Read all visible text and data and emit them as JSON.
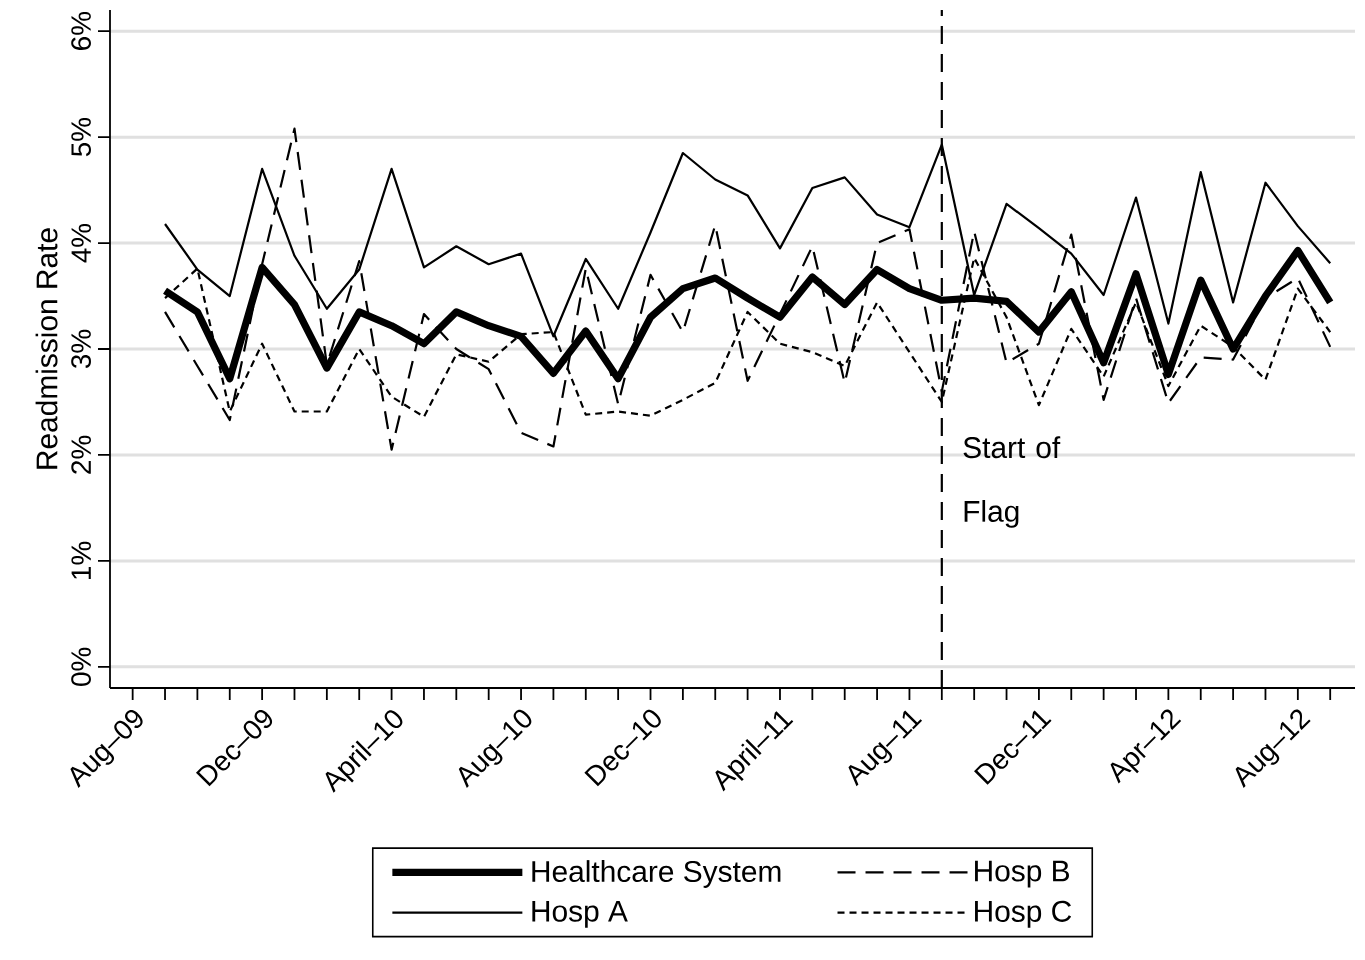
{
  "chart_data": {
    "type": "line",
    "ylabel": "Readmission Rate",
    "x": [
      "2009-09",
      "2009-10",
      "2009-11",
      "2009-12",
      "2010-01",
      "2010-02",
      "2010-03",
      "2010-04",
      "2010-05",
      "2010-06",
      "2010-07",
      "2010-08",
      "2010-09",
      "2010-10",
      "2010-11",
      "2010-12",
      "2011-01",
      "2011-02",
      "2011-03",
      "2011-04",
      "2011-05",
      "2011-06",
      "2011-07",
      "2011-08",
      "2011-09",
      "2011-10",
      "2011-11",
      "2011-12",
      "2012-01",
      "2012-02",
      "2012-03",
      "2012-04",
      "2012-05",
      "2012-06",
      "2012-07",
      "2012-08",
      "2012-09"
    ],
    "series": [
      {
        "name": "Healthcare System",
        "color": "#000000",
        "line_style": "solid",
        "values": [
          3.55,
          3.35,
          2.72,
          3.77,
          3.42,
          2.82,
          3.35,
          3.22,
          3.05,
          3.35,
          3.22,
          3.12,
          2.77,
          3.17,
          2.72,
          3.3,
          3.57,
          3.67,
          3.48,
          3.3,
          3.68,
          3.42,
          3.75,
          3.57,
          3.46,
          3.48,
          3.45,
          3.16,
          3.54,
          2.87,
          3.71,
          2.76,
          3.65,
          3.0,
          3.5,
          3.93,
          3.44
        ]
      },
      {
        "name": "Hosp A",
        "color": "#000000",
        "line_style": "solid",
        "values": [
          4.18,
          3.75,
          3.5,
          4.7,
          3.88,
          3.38,
          3.75,
          4.7,
          3.77,
          3.97,
          3.8,
          3.9,
          3.12,
          3.85,
          3.38,
          4.1,
          4.85,
          4.6,
          4.45,
          3.95,
          4.52,
          4.62,
          4.27,
          4.15,
          4.93,
          3.51,
          4.37,
          4.14,
          3.9,
          3.51,
          4.43,
          3.24,
          4.67,
          3.44,
          4.57,
          4.16,
          3.81
        ]
      },
      {
        "name": "Hosp B",
        "color": "#000000",
        "line_style": "dashed",
        "values": [
          3.35,
          2.84,
          2.33,
          3.8,
          5.08,
          2.85,
          3.83,
          2.05,
          3.33,
          3.0,
          2.81,
          2.21,
          2.08,
          3.76,
          2.48,
          3.7,
          3.16,
          4.17,
          2.7,
          3.33,
          3.97,
          2.68,
          4.0,
          4.13,
          2.6,
          4.11,
          2.87,
          3.05,
          4.08,
          2.52,
          3.48,
          2.49,
          2.92,
          2.9,
          3.48,
          3.67,
          3.02
        ]
      },
      {
        "name": "Hosp C",
        "color": "#000000",
        "line_style": "dotted",
        "values": [
          3.48,
          3.76,
          2.41,
          3.05,
          2.41,
          2.41,
          3.0,
          2.55,
          2.36,
          2.95,
          2.88,
          3.14,
          3.16,
          2.38,
          2.41,
          2.37,
          2.52,
          2.68,
          3.35,
          3.05,
          2.97,
          2.84,
          3.44,
          2.97,
          2.5,
          3.86,
          3.3,
          2.47,
          3.19,
          2.74,
          3.44,
          2.65,
          3.22,
          3.02,
          2.71,
          3.57,
          3.16
        ]
      }
    ],
    "xlim": [
      "2009-07-10",
      "2012-09-24"
    ],
    "xticks": [
      {
        "value": "2009-08",
        "label": "Aug–09"
      },
      {
        "value": "2009-09",
        "label": null
      },
      {
        "value": "2009-10",
        "label": null
      },
      {
        "value": "2009-11",
        "label": null
      },
      {
        "value": "2009-12",
        "label": "Dec–09"
      },
      {
        "value": "2010-01",
        "label": null
      },
      {
        "value": "2010-02",
        "label": null
      },
      {
        "value": "2010-03",
        "label": null
      },
      {
        "value": "2010-04",
        "label": "April–10"
      },
      {
        "value": "2010-05",
        "label": null
      },
      {
        "value": "2010-06",
        "label": null
      },
      {
        "value": "2010-07",
        "label": null
      },
      {
        "value": "2010-08",
        "label": "Aug–10"
      },
      {
        "value": "2010-09",
        "label": null
      },
      {
        "value": "2010-10",
        "label": null
      },
      {
        "value": "2010-11",
        "label": null
      },
      {
        "value": "2010-12",
        "label": "Dec–10"
      },
      {
        "value": "2011-01",
        "label": null
      },
      {
        "value": "2011-02",
        "label": null
      },
      {
        "value": "2011-03",
        "label": null
      },
      {
        "value": "2011-04",
        "label": "April–11"
      },
      {
        "value": "2011-05",
        "label": null
      },
      {
        "value": "2011-06",
        "label": null
      },
      {
        "value": "2011-07",
        "label": null
      },
      {
        "value": "2011-08",
        "label": "Aug–11"
      },
      {
        "value": "2011-09",
        "label": null
      },
      {
        "value": "2011-10",
        "label": null
      },
      {
        "value": "2011-11",
        "label": null
      },
      {
        "value": "2011-12",
        "label": "Dec–11"
      },
      {
        "value": "2012-01",
        "label": null
      },
      {
        "value": "2012-02",
        "label": null
      },
      {
        "value": "2012-03",
        "label": null
      },
      {
        "value": "2012-04",
        "label": "Apr–12"
      },
      {
        "value": "2012-05",
        "label": null
      },
      {
        "value": "2012-06",
        "label": null
      },
      {
        "value": "2012-07",
        "label": null
      },
      {
        "value": "2012-08",
        "label": "Aug–12"
      },
      {
        "value": "2012-09",
        "label": null
      }
    ],
    "ylim": [
      -0.2,
      6.2
    ],
    "yticks": [
      {
        "value": 0,
        "label": "0%"
      },
      {
        "value": 1,
        "label": "1%"
      },
      {
        "value": 2,
        "label": "2%"
      },
      {
        "value": 3,
        "label": "3%"
      },
      {
        "value": 4,
        "label": "4%"
      },
      {
        "value": 5,
        "label": "5%"
      },
      {
        "value": 6,
        "label": "6%"
      }
    ],
    "grid": "y",
    "ref_lines": [
      {
        "axis": "x",
        "value": "2011-09",
        "label": "Start of Flag",
        "line_style": "dashed",
        "color": "#000000"
      }
    ],
    "legend": "bottom"
  }
}
